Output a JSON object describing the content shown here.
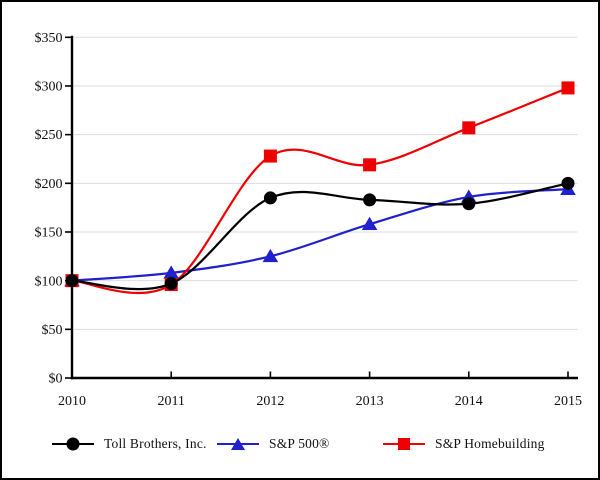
{
  "chart_data": {
    "type": "line",
    "title": "",
    "xlabel": "",
    "ylabel": "",
    "x_categories": [
      "2010",
      "2011",
      "2012",
      "2013",
      "2014",
      "2015"
    ],
    "y_axis": {
      "min": 0,
      "max": 350,
      "step": 50,
      "tick_labels": [
        "$0",
        "$50",
        "$100",
        "$150",
        "$200",
        "$250",
        "$300",
        "$350"
      ]
    },
    "series": [
      {
        "name": "Toll Brothers, Inc.",
        "color": "#000000",
        "marker": "circle",
        "values": [
          100,
          97,
          185,
          183,
          179,
          200
        ]
      },
      {
        "name": "S&P 500®",
        "color": "#2020cc",
        "marker": "triangle",
        "values": [
          100,
          108,
          125,
          158,
          186,
          194
        ]
      },
      {
        "name": "S&P Homebuilding",
        "color": "#ee0000",
        "marker": "square",
        "values": [
          100,
          96,
          228,
          219,
          257,
          298
        ]
      }
    ],
    "smoothed_lines": true,
    "grid": "horizontal",
    "gridline_color": "#dedede",
    "axis_color": "#000000",
    "legend_position": "bottom"
  }
}
